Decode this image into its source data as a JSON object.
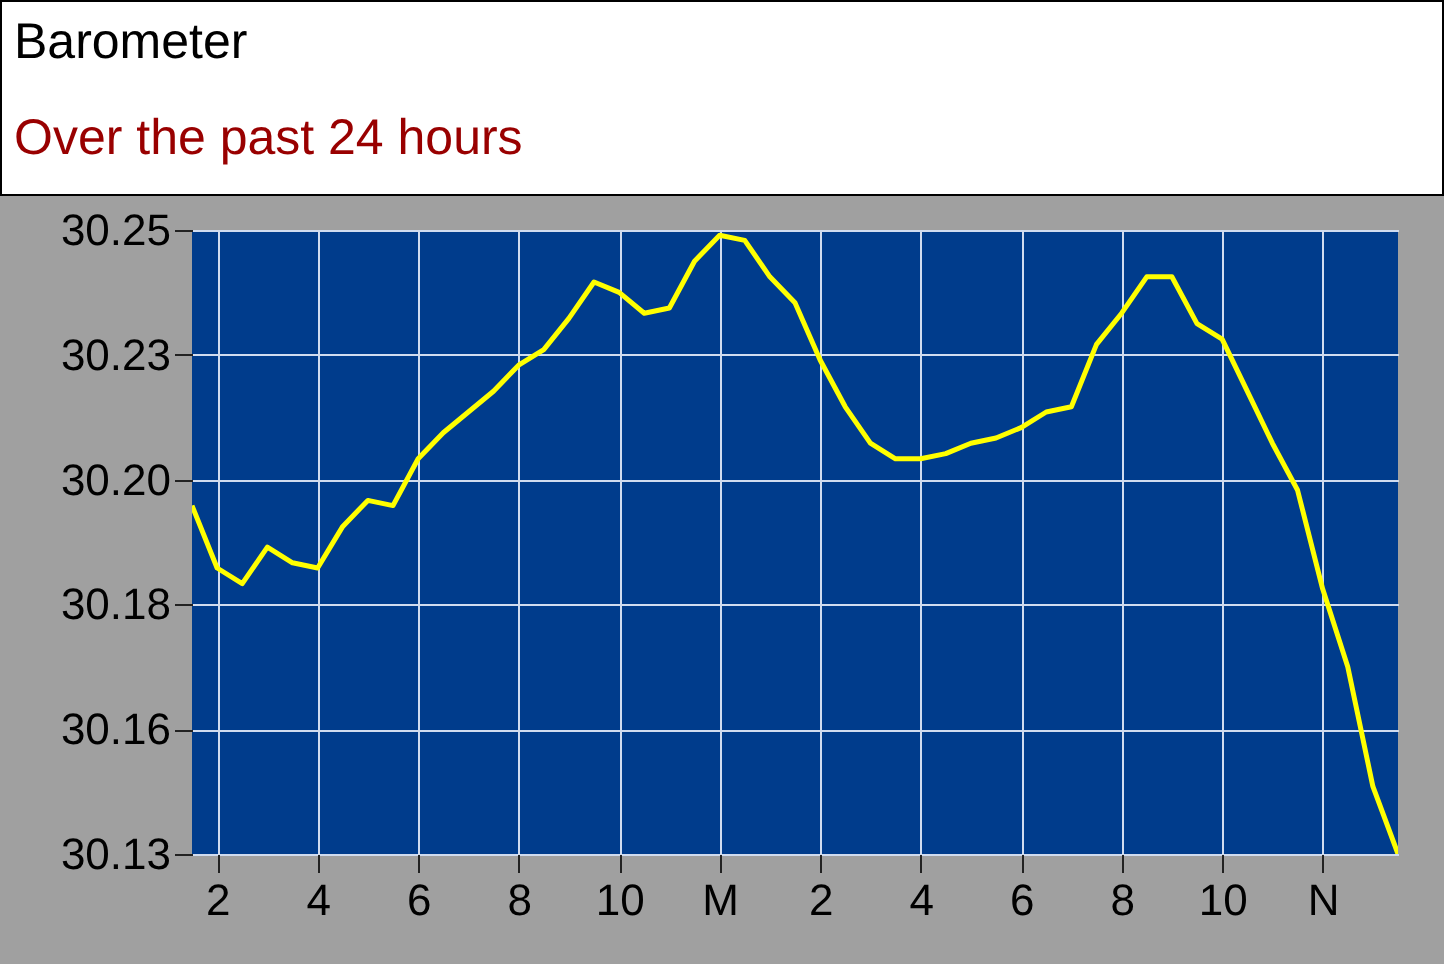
{
  "chart_data": {
    "type": "line",
    "title": "Barometer",
    "subtitle": "Over the past 24 hours",
    "categories": [
      null,
      "2",
      null,
      null,
      null,
      "4",
      null,
      null,
      null,
      "6",
      null,
      null,
      null,
      "8",
      null,
      null,
      null,
      "10",
      null,
      null,
      null,
      "M",
      null,
      null,
      null,
      "2",
      null,
      null,
      null,
      "4",
      null,
      null,
      null,
      "6",
      null,
      null,
      null,
      "8",
      null,
      null,
      null,
      "10",
      null,
      null,
      null,
      "N",
      null,
      null,
      null
    ],
    "series": [
      {
        "color": "#ffff00",
        "values": [
          30.199,
          30.187,
          30.184,
          30.191,
          30.188,
          30.187,
          30.195,
          30.2,
          30.199,
          30.208,
          30.213,
          30.217,
          30.221,
          30.226,
          30.229,
          30.235,
          30.242,
          30.24,
          30.236,
          30.237,
          30.246,
          30.251,
          30.25,
          30.243,
          30.238,
          30.227,
          30.218,
          30.211,
          30.208,
          30.208,
          30.209,
          30.211,
          30.212,
          30.214,
          30.217,
          30.218,
          30.23,
          30.236,
          30.243,
          30.243,
          30.234,
          30.231,
          30.221,
          30.211,
          30.202,
          30.183,
          30.168,
          30.145,
          30.132
        ]
      }
    ],
    "ylim": [
      30.132,
      30.252
    ],
    "yticks": [
      {
        "value": 30.132,
        "label": "30.13"
      },
      {
        "value": 30.156,
        "label": "30.16"
      },
      {
        "value": 30.18,
        "label": "30.18"
      },
      {
        "value": 30.204,
        "label": "30.20"
      },
      {
        "value": 30.228,
        "label": "30.23"
      },
      {
        "value": 30.252,
        "label": "30.25"
      }
    ],
    "grid": true
  }
}
